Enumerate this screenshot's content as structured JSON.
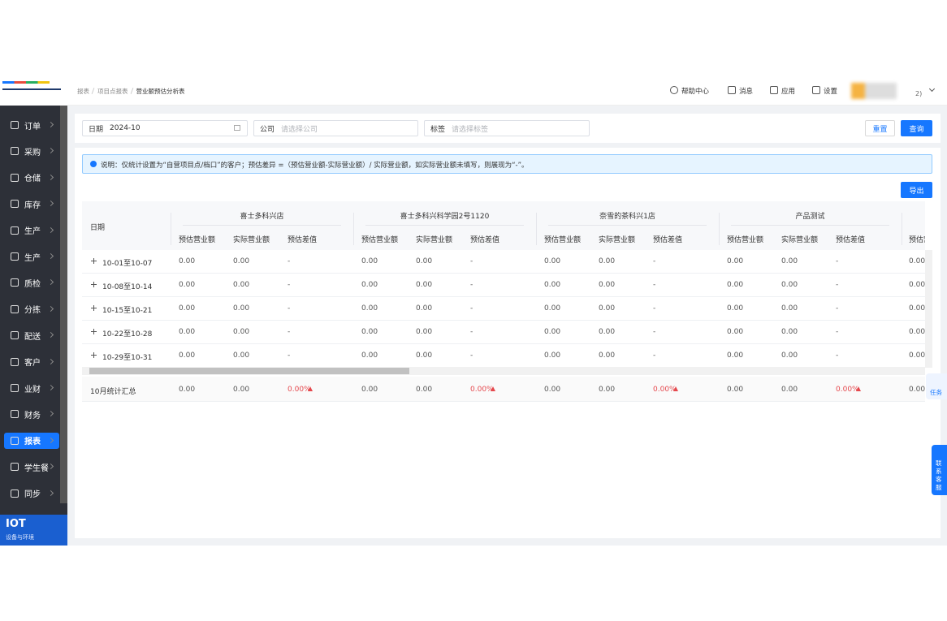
{
  "sidebar": {
    "menu": [
      "订单",
      "采购",
      "仓储",
      "库存",
      "生产",
      "生产",
      "质检",
      "分拣",
      "配送",
      "客户",
      "业财",
      "财务",
      "报表",
      "学生餐",
      "同步"
    ],
    "iot": {
      "title": "IOT",
      "subtitle": "设备与环境"
    }
  },
  "header": {
    "breadcrumb": [
      "报表",
      "项目点报表",
      "营业额预估分析表"
    ],
    "actions": [
      "帮助中心",
      "消息",
      "应用",
      "设置"
    ],
    "user": "2)"
  },
  "filters": {
    "date": {
      "label": "日期",
      "value": "2024-10"
    },
    "company": {
      "label": "公司",
      "placeholder": "请选择公司"
    },
    "tag": {
      "label": "标签",
      "placeholder": "请选择标签"
    },
    "buttons": [
      "重置",
      "查询"
    ]
  },
  "notice": "说明：仅统计设置为“自营项目点/档口”的客户；预估差异 =（预估营业额-实际营业额）/ 实际营业额，如实际营业额未填写，则展现为“-”。",
  "export": "导出",
  "table": {
    "date_header": "日期",
    "stores": [
      "喜士多科兴店",
      "喜士多科兴科学园2号1120",
      "奈雪的茶科兴1店",
      "产品测试"
    ],
    "sub_columns": [
      "预估营业额",
      "实际营业额",
      "预估差值"
    ],
    "rows": [
      {
        "date": "10-01至10-07",
        "cells": [
          "0.00",
          "0.00",
          "-",
          "0.00",
          "0.00",
          "-",
          "0.00",
          "0.00",
          "-",
          "0.00",
          "0.00",
          "-",
          "0.00"
        ]
      },
      {
        "date": "10-08至10-14",
        "cells": [
          "0.00",
          "0.00",
          "-",
          "0.00",
          "0.00",
          "-",
          "0.00",
          "0.00",
          "-",
          "0.00",
          "0.00",
          "-",
          "0.00"
        ]
      },
      {
        "date": "10-15至10-21",
        "cells": [
          "0.00",
          "0.00",
          "-",
          "0.00",
          "0.00",
          "-",
          "0.00",
          "0.00",
          "-",
          "0.00",
          "0.00",
          "-",
          "0.00"
        ]
      },
      {
        "date": "10-22至10-28",
        "cells": [
          "0.00",
          "0.00",
          "-",
          "0.00",
          "0.00",
          "-",
          "0.00",
          "0.00",
          "-",
          "0.00",
          "0.00",
          "-",
          "0.00"
        ]
      },
      {
        "date": "10-29至10-31",
        "cells": [
          "0.00",
          "0.00",
          "-",
          "0.00",
          "0.00",
          "-",
          "0.00",
          "0.00",
          "-",
          "0.00",
          "0.00",
          "-",
          "0.00"
        ]
      }
    ],
    "summary": {
      "label": "10月统计汇总",
      "cells": [
        "0.00",
        "0.00",
        "0.00%",
        "0.00",
        "0.00",
        "0.00%",
        "0.00",
        "0.00",
        "0.00%",
        "0.00",
        "0.00",
        "0.00%",
        "0.00"
      ]
    }
  },
  "float": [
    "任务",
    "联系客服"
  ]
}
